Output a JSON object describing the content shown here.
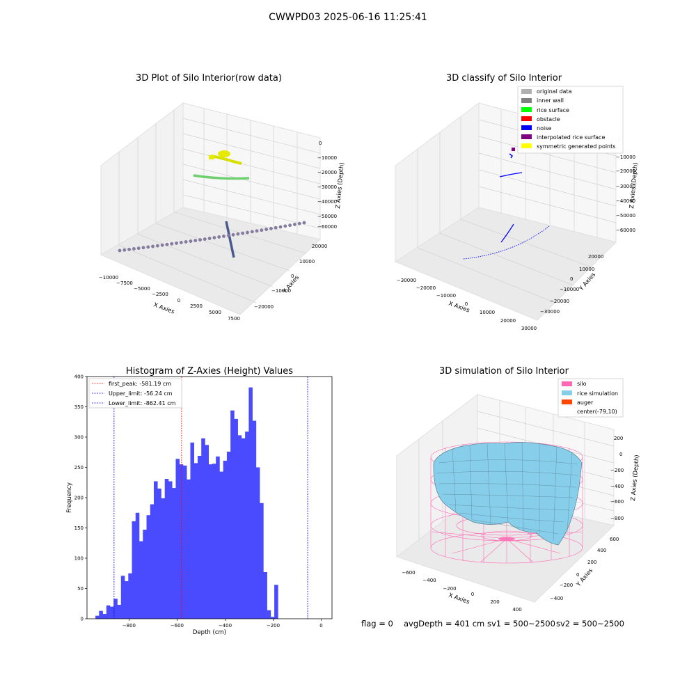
{
  "figure": {
    "suptitle": "CWWPD03 2025-06-16 11:25:41"
  },
  "colors": {
    "original": "#b0b0b0",
    "inner_wall": "#808080",
    "rice_surface": "#00ff00",
    "obstacle": "#ff0000",
    "noise": "#0000ff",
    "interpolated": "#800080",
    "symmetric": "#ffff00",
    "silo": "#ff69b4",
    "rice_sim": "#87ceeb",
    "auger": "#ff4500",
    "hist_bar": "#4a4aff"
  },
  "panels": {
    "raw": {
      "title": "3D Plot of Silo Interior(row data)",
      "xlabel": "X Axies",
      "ylabel": "Y Axies",
      "zlabel": "Z Axies (Depth)",
      "xticks": [
        "−10000",
        "−7500",
        "−5000",
        "−2500",
        "0",
        "2500",
        "5000",
        "7500"
      ],
      "yticks": [
        "20000",
        "10000",
        "0",
        "−10000",
        "−20000"
      ],
      "zticks": [
        "0",
        "−10000",
        "−20000",
        "−30000",
        "−40000",
        "−50000",
        "−60000"
      ]
    },
    "classify": {
      "title": "3D classify of Silo Interior",
      "xlabel": "X Axies",
      "ylabel": "Y Axies",
      "zlabel": "Z Axies (Depth)",
      "xticks": [
        "−30000",
        "−20000",
        "−10000",
        "0",
        "10000",
        "20000",
        "30000"
      ],
      "yticks": [
        "20000",
        "10000",
        "0",
        "−10000",
        "−20000",
        "−30000"
      ],
      "zticks": [
        "0",
        "−10000",
        "−20000",
        "−30000",
        "−40000",
        "−50000",
        "−60000"
      ],
      "legend": [
        "original data",
        "inner wall",
        "rice surface",
        "obstacle",
        "noise",
        "interpolated rice surface",
        "symmetric generated points"
      ]
    },
    "simulation": {
      "title": "3D simulation of Silo Interior",
      "xlabel": "X Axies",
      "ylabel": "Y Axies",
      "zlabel": "Z Axies (Depth)",
      "xticks": [
        "−600",
        "−400",
        "−200",
        "0",
        "200",
        "400"
      ],
      "yticks": [
        "600",
        "400",
        "200",
        "0",
        "−200",
        "−400"
      ],
      "zticks": [
        "200",
        "0",
        "−200",
        "−400",
        "−600",
        "−800"
      ],
      "legend": [
        "silo",
        "rice simulation",
        "auger",
        "center(-79,10)"
      ]
    }
  },
  "status": {
    "flag": "flag = 0",
    "avg_depth": "avgDepth = 401 cm",
    "sv1": "sv1 = 500~2500",
    "sv2": "sv2 = 500~2500"
  },
  "chart_data": {
    "type": "bar",
    "title": "Histogram of Z-Axies (Height) Values",
    "xlabel": "Depth (cm)",
    "ylabel": "Frequency",
    "xlim": [
      -975,
      45
    ],
    "ylim": [
      0,
      400
    ],
    "xticks": [
      -800,
      -600,
      -400,
      -200,
      0
    ],
    "yticks": [
      0,
      50,
      100,
      150,
      200,
      250,
      300,
      350,
      400
    ],
    "bin_start": -940,
    "bin_width": 15.2,
    "values": [
      5,
      13,
      8,
      22,
      20,
      33,
      23,
      71,
      62,
      75,
      161,
      175,
      128,
      147,
      171,
      189,
      227,
      215,
      199,
      231,
      227,
      216,
      264,
      255,
      253,
      230,
      291,
      257,
      269,
      298,
      287,
      255,
      256,
      268,
      243,
      261,
      276,
      344,
      330,
      303,
      298,
      309,
      382,
      327,
      250,
      191,
      77,
      14,
      3,
      56
    ],
    "lines": [
      {
        "label": "first_peak: -581.19 cm",
        "x": -581.19,
        "color": "#ff0000"
      },
      {
        "label": "Upper_limit: -56.24 cm",
        "x": -56.24,
        "color": "#0000ff"
      },
      {
        "label": "Lower_limit: -862.41 cm",
        "x": -862.41,
        "color": "#0000ff"
      }
    ]
  }
}
